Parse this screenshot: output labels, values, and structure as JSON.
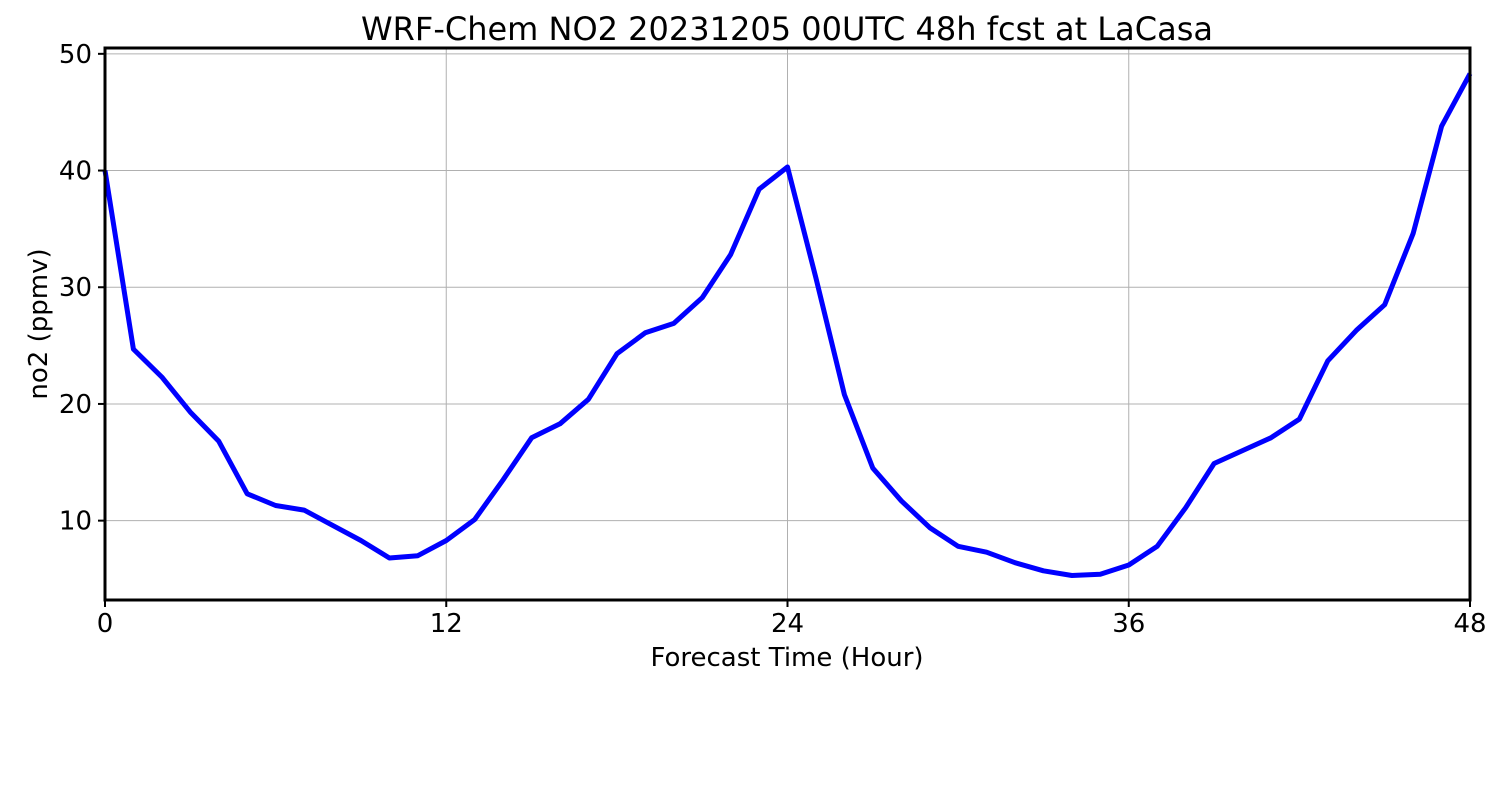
{
  "chart_data": {
    "type": "line",
    "title": "WRF-Chem NO2  20231205 00UTC 48h fcst at LaCasa",
    "xlabel": "Forecast Time (Hour)",
    "ylabel": "no2  (ppmv)",
    "xlim": [
      0,
      48
    ],
    "ylim": [
      3.2,
      50.5
    ],
    "xticks": [
      0,
      12,
      24,
      36,
      48
    ],
    "yticks": [
      10,
      20,
      30,
      40,
      50
    ],
    "grid": true,
    "color": "#0000ff",
    "series": [
      {
        "x": [
          0,
          1,
          2,
          3,
          4,
          5,
          6,
          7,
          8,
          9,
          10,
          11,
          12,
          13,
          14,
          15,
          16,
          17,
          18,
          19,
          20,
          21,
          22,
          23,
          24,
          25,
          26,
          27,
          28,
          29,
          30,
          31,
          32,
          33,
          34,
          35,
          36,
          37,
          38,
          39,
          40,
          41,
          42,
          43,
          44,
          45,
          46,
          47,
          48
        ],
        "values": [
          40.0,
          24.7,
          22.3,
          19.3,
          16.8,
          12.3,
          11.3,
          10.9,
          9.6,
          8.3,
          6.8,
          7.0,
          8.3,
          10.1,
          13.5,
          17.1,
          18.3,
          20.4,
          24.3,
          26.1,
          26.9,
          29.1,
          32.8,
          38.4,
          40.3,
          30.8,
          20.8,
          14.5,
          11.7,
          9.4,
          7.8,
          7.3,
          6.4,
          5.7,
          5.3,
          5.4,
          6.2,
          7.8,
          11.1,
          14.9,
          16.0,
          17.1,
          18.7,
          23.7,
          26.3,
          28.5,
          34.6,
          43.8,
          48.3
        ]
      }
    ]
  }
}
